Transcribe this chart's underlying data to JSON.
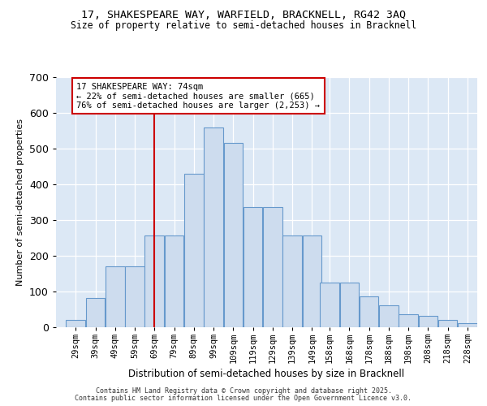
{
  "title1": "17, SHAKESPEARE WAY, WARFIELD, BRACKNELL, RG42 3AQ",
  "title2": "Size of property relative to semi-detached houses in Bracknell",
  "xlabel": "Distribution of semi-detached houses by size in Bracknell",
  "ylabel": "Number of semi-detached properties",
  "categories": [
    "29sqm",
    "39sqm",
    "49sqm",
    "59sqm",
    "69sqm",
    "79sqm",
    "89sqm",
    "99sqm",
    "109sqm",
    "119sqm",
    "129sqm",
    "139sqm",
    "149sqm",
    "158sqm",
    "168sqm",
    "178sqm",
    "188sqm",
    "198sqm",
    "208sqm",
    "218sqm",
    "228sqm"
  ],
  "bin_starts": [
    29,
    39,
    49,
    59,
    69,
    79,
    89,
    99,
    109,
    119,
    129,
    139,
    149,
    158,
    168,
    178,
    188,
    198,
    208,
    218,
    228
  ],
  "bar_heights": [
    20,
    80,
    170,
    170,
    255,
    255,
    430,
    560,
    515,
    335,
    335,
    255,
    255,
    125,
    125,
    85,
    60,
    35,
    30,
    20,
    10
  ],
  "property_size": 74,
  "annotation_line1": "17 SHAKESPEARE WAY: 74sqm",
  "annotation_line2": "← 22% of semi-detached houses are smaller (665)",
  "annotation_line3": "76% of semi-detached houses are larger (2,253) →",
  "bar_color": "#cddcee",
  "bar_edge_color": "#6699cc",
  "vline_color": "#cc0000",
  "bg_color": "#dce8f5",
  "grid_color": "#ffffff",
  "footer1": "Contains HM Land Registry data © Crown copyright and database right 2025.",
  "footer2": "Contains public sector information licensed under the Open Government Licence v3.0.",
  "ylim": [
    0,
    700
  ],
  "xlim": [
    24,
    238
  ],
  "bin_width": 10
}
